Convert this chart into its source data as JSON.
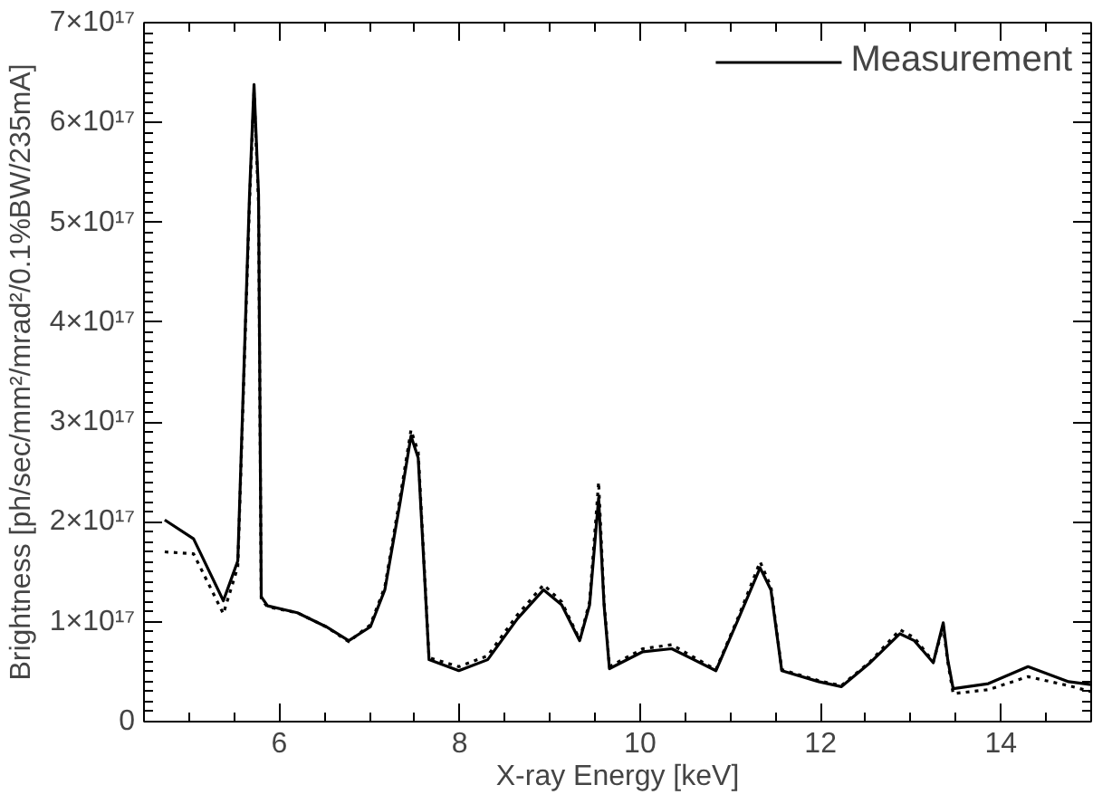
{
  "chart_data": {
    "type": "line",
    "xlabel": "X-ray Energy [keV]",
    "ylabel": "Brightness [ph/sec/mm²/mrad²/0.1%BW/235mA]",
    "xlim": [
      4.5,
      15
    ],
    "xticks": [
      6,
      8,
      10,
      12,
      14
    ],
    "ylim": [
      0,
      7e+17
    ],
    "yticks": [
      0,
      {
        "value": 1e+17,
        "label": "1×10¹⁷"
      },
      {
        "value": 2e+17,
        "label": "2×10¹⁷"
      },
      {
        "value": 3e+17,
        "label": "3×10¹⁷"
      },
      {
        "value": 4e+17,
        "label": "4×10¹⁷"
      },
      {
        "value": 5e+17,
        "label": "5×10¹⁷"
      },
      {
        "value": 6e+17,
        "label": "6×10¹⁷"
      },
      {
        "value": 7e+17,
        "label": "7×10¹⁷"
      }
    ],
    "grid": false,
    "legend": "top right",
    "x": [
      4.73,
      5.05,
      5.38,
      5.54,
      5.67,
      5.72,
      5.77,
      5.8,
      5.87,
      6.2,
      6.52,
      6.77,
      7.01,
      7.17,
      7.34,
      7.46,
      7.54,
      7.66,
      7.99,
      8.31,
      8.64,
      8.93,
      9.13,
      9.33,
      9.44,
      9.54,
      9.6,
      9.66,
      10.03,
      10.35,
      10.84,
      11.09,
      11.33,
      11.45,
      11.57,
      11.98,
      12.23,
      12.55,
      12.88,
      13.04,
      13.25,
      13.36,
      13.41,
      13.47,
      13.86,
      14.3,
      14.75,
      15
    ],
    "series": [
      {
        "name": "Measurement",
        "color": "#000000",
        "line_style": "solid",
        "values": [
          2.02e+17,
          1.83e+17,
          1.21e+17,
          1.61e+17,
          5.28e+17,
          6.38e+17,
          5.28e+17,
          1.25e+17,
          1.16e+17,
          1.09e+17,
          9.5e+16,
          8.1e+16,
          9.5e+16,
          1.32e+17,
          2.2e+17,
          2.86e+17,
          2.64e+17,
          6.2e+16,
          5.1e+16,
          6.2e+16,
          1.03e+17,
          1.32e+17,
          1.17e+17,
          8.1e+16,
          1.17e+17,
          2.24e+17,
          1.17e+17,
          5.3e+16,
          7e+16,
          7.3e+16,
          5.1e+16,
          1.03e+17,
          1.54e+17,
          1.32e+17,
          5.1e+16,
          4e+16,
          3.5e+16,
          5.9e+16,
          8.8e+16,
          8.1e+16,
          5.9e+16,
          9.9e+16,
          6.2e+16,
          3.3e+16,
          3.8e+16,
          5.5e+16,
          4e+16,
          3.7e+16
        ]
      },
      {
        "color": "#000000",
        "line_style": "dotted",
        "values": [
          1.7e+17,
          1.68e+17,
          1.08e+17,
          1.55e+17,
          5.2e+17,
          6.3e+17,
          5.2e+17,
          1.22e+17,
          1.15e+17,
          1.09e+17,
          9.5e+16,
          8e+16,
          9.7e+16,
          1.35e+17,
          2.25e+17,
          2.92e+17,
          2.7e+17,
          6.4e+16,
          5.5e+16,
          6.6e+16,
          1.07e+17,
          1.37e+17,
          1.2e+17,
          8.2e+16,
          1.2e+17,
          2.4e+17,
          1.2e+17,
          5.5e+16,
          7.3e+16,
          7.7e+16,
          5.2e+16,
          1.05e+17,
          1.6e+17,
          1.35e+17,
          5.2e+16,
          4.1e+16,
          3.6e+16,
          6e+16,
          9.2e+16,
          8.4e+16,
          6e+16,
          9.5e+16,
          6e+16,
          2.8e+16,
          3.2e+16,
          4.5e+16,
          3.6e+16,
          3e+16
        ]
      }
    ]
  }
}
